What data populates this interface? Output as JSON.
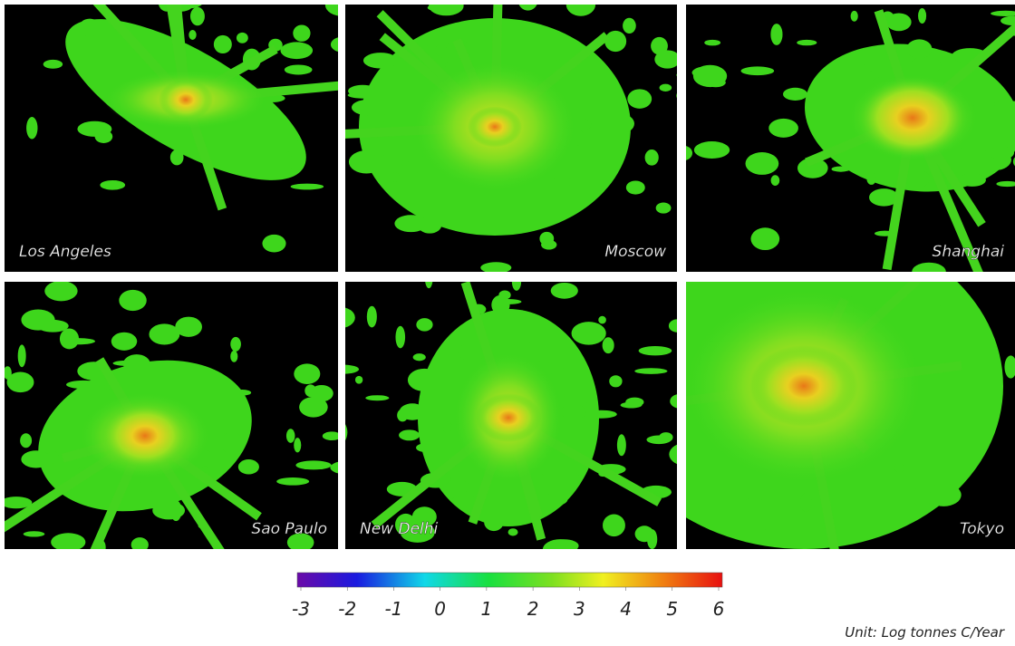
{
  "panels": [
    {
      "label": "Los Angeles"
    },
    {
      "label": "Moscow"
    },
    {
      "label": "Shanghai"
    },
    {
      "label": "Sao Paulo"
    },
    {
      "label": "New Delhi"
    },
    {
      "label": "Tokyo"
    }
  ],
  "colorbar": {
    "lim": [
      -3,
      6
    ],
    "ticks": [
      -3,
      -2,
      -1,
      0,
      1,
      2,
      3,
      4,
      5,
      6
    ]
  },
  "unit": "Unit: Log tonnes C/Year"
}
